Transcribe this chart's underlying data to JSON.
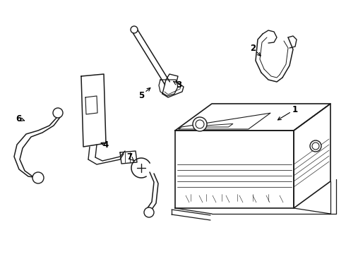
{
  "bg_color": "#ffffff",
  "line_color": "#1a1a1a",
  "lw_main": 1.2,
  "lw_thin": 0.7,
  "label_fontsize": 8.5,
  "fig_width": 4.9,
  "fig_height": 3.6,
  "dpi": 100,
  "xlim": [
    0,
    490
  ],
  "ylim": [
    0,
    360
  ]
}
